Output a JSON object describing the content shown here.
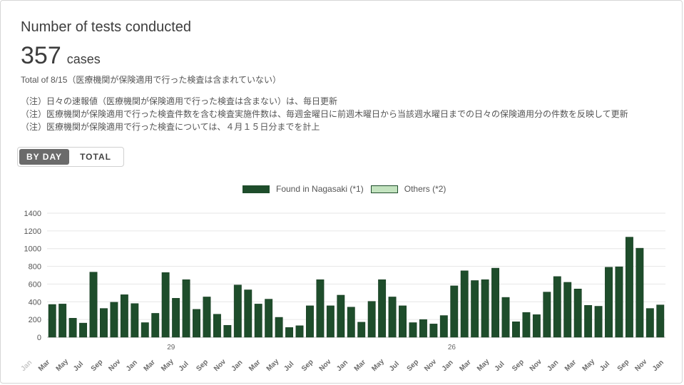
{
  "title": "Number of tests conducted",
  "total": {
    "value": "357",
    "unit": "cases"
  },
  "subtitle": "Total of 8/15（医療機関が保険適用で行った検査は含まれていない）",
  "notes": [
    "（注）日々の速報値（医療機関が保険適用で行った検査は含まない）は、毎日更新",
    "（注）医療機関が保険適用で行った検査件数を含む検査実施件数は、毎週金曜日に前週木曜日から当該週水曜日までの日々の保険適用分の件数を反映して更新",
    "（注）医療機関が保険適用で行った検査については、４月１５日分までを計上"
  ],
  "toggle": {
    "by_day": "BY DAY",
    "total": "TOTAL"
  },
  "colors": {
    "found": "#1e4d2b",
    "others": "#c3e3bf",
    "grid": "#e6e6e6",
    "axis_text": "#555555"
  },
  "chart_data": {
    "type": "bar",
    "series": [
      {
        "name": "Found in Nagasaki (*1)",
        "color": "#1e4d2b",
        "values": [
          370,
          375,
          215,
          160,
          735,
          325,
          395,
          480,
          380,
          165,
          270,
          730,
          440,
          650,
          315,
          455,
          260,
          135,
          590,
          535,
          375,
          430,
          225,
          110,
          130,
          355,
          650,
          355,
          475,
          340,
          170,
          405,
          650,
          455,
          355,
          165,
          200,
          150,
          245,
          580,
          750,
          640,
          650,
          780,
          450,
          175,
          280,
          255,
          510,
          685,
          620,
          545,
          360,
          350,
          790,
          795,
          1130,
          1005,
          325,
          365
        ]
      },
      {
        "name": "Others (*2)",
        "color": "#c3e3bf",
        "values": [
          0,
          0,
          0,
          0,
          0,
          0,
          0,
          0,
          0,
          0,
          0,
          0,
          0,
          0,
          0,
          0,
          0,
          0,
          0,
          0,
          0,
          0,
          0,
          0,
          0,
          0,
          0,
          0,
          0,
          0,
          0,
          0,
          0,
          0,
          0,
          0,
          0,
          0,
          0,
          0,
          0,
          0,
          0,
          0,
          0,
          0,
          0,
          0,
          0,
          0,
          0,
          0,
          0,
          0,
          0,
          0,
          0,
          0,
          0,
          0
        ]
      }
    ],
    "ylim": [
      0,
      1400
    ],
    "yticks": [
      0,
      200,
      400,
      600,
      800,
      1000,
      1200,
      1400
    ],
    "xtick_labels": [
      "Jan",
      "Mar",
      "May",
      "Jul",
      "Sep",
      "Nov",
      "Jan",
      "Mar",
      "May",
      "Jul",
      "Sep",
      "Nov",
      "Jan",
      "Mar",
      "May",
      "Jul",
      "Sep",
      "Nov",
      "Jan",
      "Mar",
      "May",
      "Jul",
      "Sep",
      "Nov",
      "Jan",
      "Mar",
      "May",
      "Jul",
      "Sep",
      "Nov",
      "Jan",
      "Mar",
      "May",
      "Jul",
      "Sep",
      "Nov",
      "Jan"
    ],
    "xsub_labels": [
      {
        "after_tick": 8,
        "text": "29"
      },
      {
        "after_tick": 24,
        "text": "26"
      }
    ],
    "legend_position": "top-center",
    "grid": true
  }
}
